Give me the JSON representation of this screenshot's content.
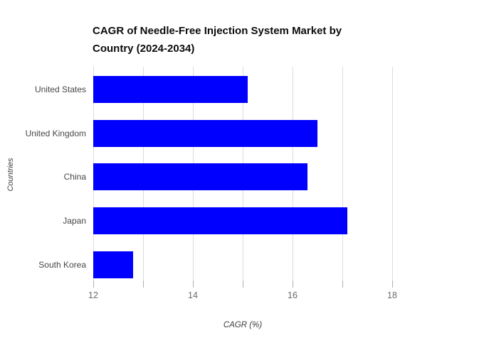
{
  "chart_data": {
    "type": "bar",
    "orientation": "horizontal",
    "title": "CAGR of Needle-Free Injection System Market by Country (2024-2034)",
    "xlabel": "CAGR (%)",
    "ylabel": "Countries",
    "categories": [
      "United States",
      "United Kingdom",
      "China",
      "Japan",
      "South Korea"
    ],
    "values": [
      15.1,
      16.5,
      16.3,
      17.1,
      12.8
    ],
    "xlim": [
      12,
      18.2
    ],
    "gridlines": [
      12,
      13,
      14,
      15,
      16,
      17,
      18
    ],
    "xticks_labeled": [
      "12",
      "14",
      "16",
      "18"
    ],
    "grid": true,
    "legend": false,
    "bar_color": "#0000ff"
  },
  "colors": {
    "background": "#ffffff",
    "bar": "#0000ff",
    "gridline": "#dcdcdc",
    "tick": "#b0b0b0",
    "tick_label": "#6b6b6b",
    "category_label": "#474747",
    "title": "#0c0c0c",
    "axis_title": "#3d3d3d"
  }
}
